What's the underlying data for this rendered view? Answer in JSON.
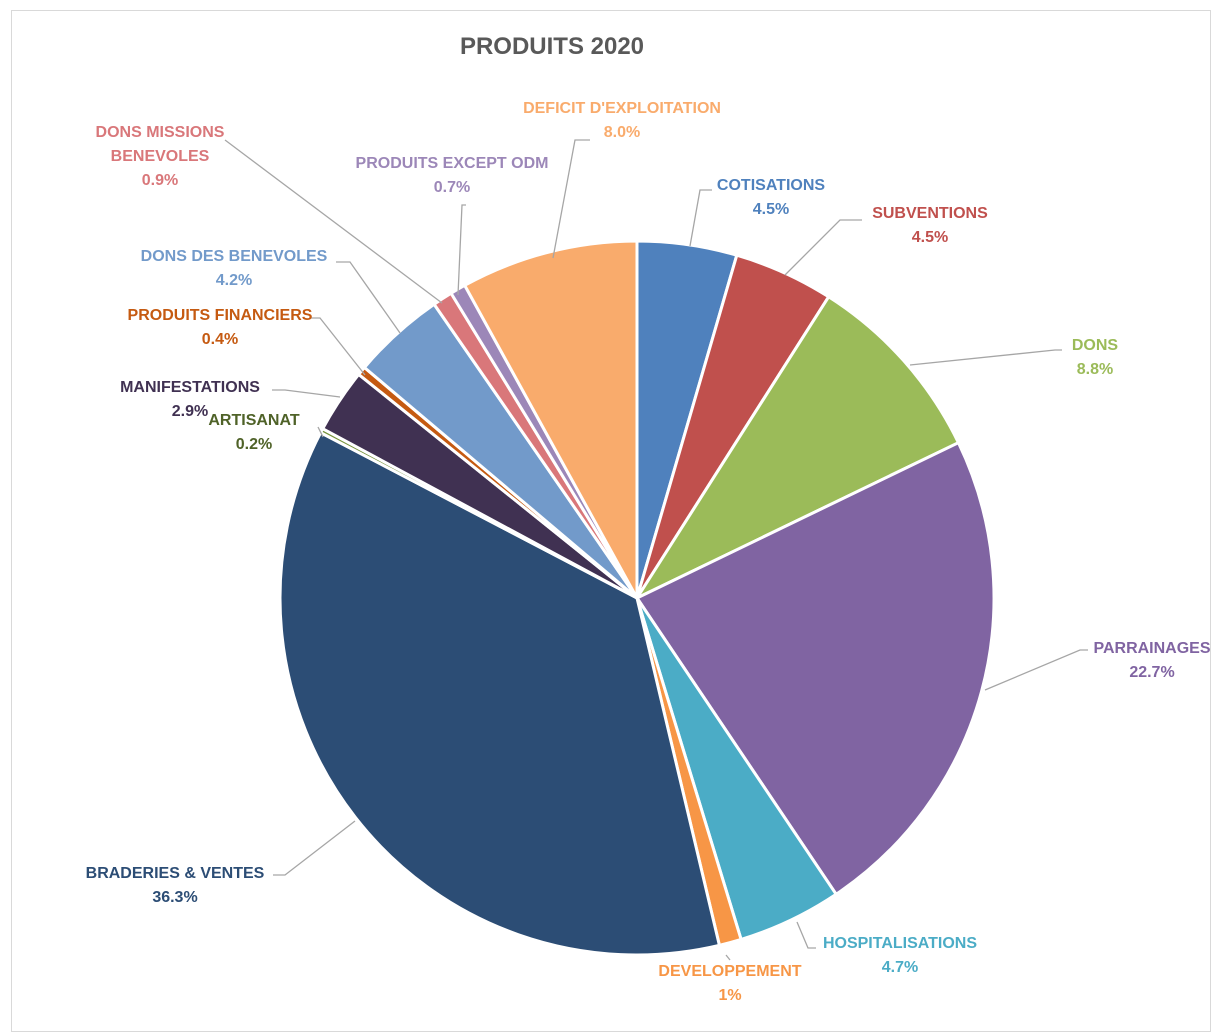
{
  "chart_data": {
    "type": "pie",
    "title": "PRODUITS 2020",
    "slices": [
      {
        "name": "COTISATIONS",
        "label_lines": [
          "COTISATIONS"
        ],
        "value_label": "4.5%",
        "value": 4.5,
        "color": "#4f81bd",
        "label_color": "#4f81bd"
      },
      {
        "name": "SUBVENTIONS",
        "label_lines": [
          "SUBVENTIONS"
        ],
        "value_label": "4.5%",
        "value": 4.5,
        "color": "#c0504d",
        "label_color": "#c0504d"
      },
      {
        "name": "DONS",
        "label_lines": [
          "DONS"
        ],
        "value_label": "8.8%",
        "value": 8.8,
        "color": "#9bbb59",
        "label_color": "#9bbb59"
      },
      {
        "name": "PARRAINAGES",
        "label_lines": [
          "PARRAINAGES"
        ],
        "value_label": "22.7%",
        "value": 22.7,
        "color": "#8064a2",
        "label_color": "#8064a2"
      },
      {
        "name": "HOSPITALISATIONS",
        "label_lines": [
          "HOSPITALISATIONS"
        ],
        "value_label": "4.7%",
        "value": 4.7,
        "color": "#4bacc6",
        "label_color": "#4bacc6"
      },
      {
        "name": "DEVELOPPEMENT",
        "label_lines": [
          "DEVELOPPEMENT"
        ],
        "value_label": "1%",
        "value": 1.0,
        "color": "#f79646",
        "label_color": "#f79646"
      },
      {
        "name": "BRADERIES & VENTES",
        "label_lines": [
          "BRADERIES & VENTES"
        ],
        "value_label": "36.3%",
        "value": 36.3,
        "color": "#2c4d75",
        "label_color": "#2c4d75"
      },
      {
        "name": "ARTISANAT",
        "label_lines": [
          "ARTISANAT"
        ],
        "value_label": "0.2%",
        "value": 0.2,
        "color": "#77933c",
        "label_color": "#4f6228"
      },
      {
        "name": "MANIFESTATIONS",
        "label_lines": [
          "MANIFESTATIONS"
        ],
        "value_label": "2.9%",
        "value": 2.9,
        "color": "#403152",
        "label_color": "#403152"
      },
      {
        "name": "PRODUITS FINANCIERS",
        "label_lines": [
          "PRODUITS FINANCIERS"
        ],
        "value_label": "0.4%",
        "value": 0.4,
        "color": "#c55a11",
        "label_color": "#c55a11"
      },
      {
        "name": "DONS DES BENEVOLES",
        "label_lines": [
          "DONS DES BENEVOLES"
        ],
        "value_label": "4.2%",
        "value": 4.2,
        "color": "#729aca",
        "label_color": "#729aca"
      },
      {
        "name": "DONS MISSIONS BENEVOLES",
        "label_lines": [
          "DONS MISSIONS",
          "BENEVOLES"
        ],
        "value_label": "0.9%",
        "value": 0.9,
        "color": "#d9777a",
        "label_color": "#d9777a"
      },
      {
        "name": "PRODUITS EXCEPT ODM",
        "label_lines": [
          "PRODUITS EXCEPT ODM"
        ],
        "value_label": "0.7%",
        "value": 0.7,
        "color": "#9c87b8",
        "label_color": "#9c87b8"
      },
      {
        "name": "DEFICIT D'EXPLOITATION",
        "label_lines": [
          "DEFICIT D'EXPLOITATION"
        ],
        "value_label": "8.0%",
        "value": 8.0,
        "color": "#f9ab6c",
        "label_color": "#f9ab6c"
      }
    ],
    "start_angle": "top",
    "direction": "clockwise",
    "legend": "none",
    "leader_lines": true
  }
}
